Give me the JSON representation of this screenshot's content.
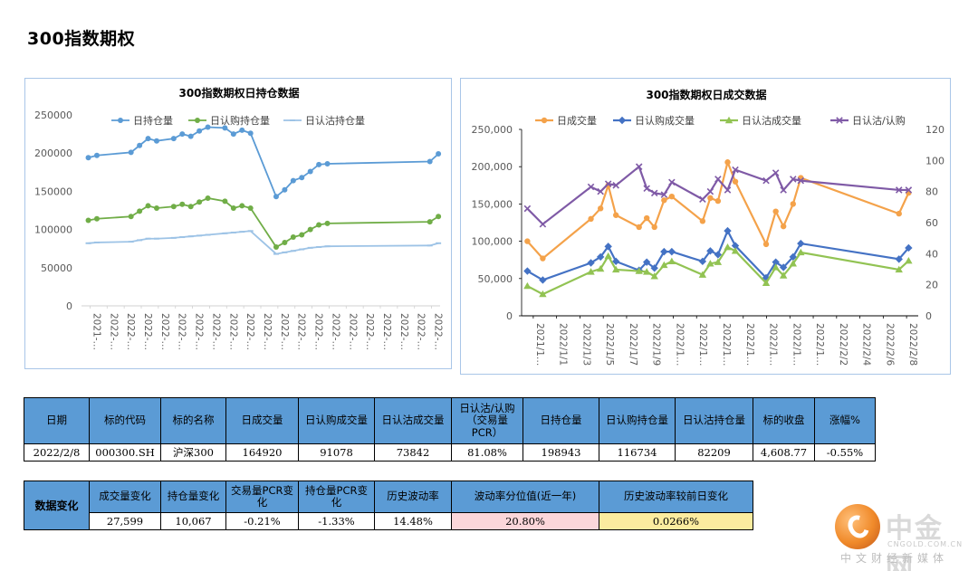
{
  "page": {
    "title": "300指数期权"
  },
  "chart_data": [
    {
      "type": "line",
      "title": "300指数期权日持仓数据",
      "ylim": [
        0,
        250000
      ],
      "yticks": [
        "0",
        "50000",
        "100000",
        "150000",
        "200000",
        "250000"
      ],
      "x_tick_labels": [
        "2021-…",
        "2022-…",
        "2022-…",
        "2022-…",
        "2022-…",
        "2022-…",
        "2022-…",
        "2022-…",
        "2022-…",
        "2022-…",
        "2022-…",
        "2022-…",
        "2022-…",
        "2022-…",
        "2022-…",
        "2022-…",
        "2022-…",
        "2022-…",
        "2022-…",
        "2022-…",
        "2022-…"
      ],
      "x_range": [
        -0.4,
        20.6
      ],
      "legend_position": "top",
      "series": [
        {
          "name": "日持仓量",
          "color": "#5b9bd5",
          "marker": "circle",
          "x": [
            0,
            0.5,
            2.5,
            3,
            3.5,
            4,
            5,
            5.5,
            6,
            6.5,
            7,
            8,
            8.5,
            9,
            9.5,
            11,
            11.5,
            12,
            12.5,
            13,
            13.5,
            14,
            20,
            20.5
          ],
          "values": [
            194000,
            197000,
            201000,
            210000,
            219000,
            216000,
            219000,
            225000,
            222000,
            229000,
            234000,
            233000,
            225000,
            230000,
            226000,
            143000,
            152000,
            164000,
            168000,
            176000,
            185000,
            186000,
            189000,
            199000
          ]
        },
        {
          "name": "日认购持仓量",
          "color": "#70ad47",
          "marker": "circle",
          "x": [
            0,
            0.5,
            2.5,
            3,
            3.5,
            4,
            5,
            5.5,
            6,
            6.5,
            7,
            8,
            8.5,
            9,
            9.5,
            11,
            11.5,
            12,
            12.5,
            13,
            13.5,
            14,
            20,
            20.5
          ],
          "values": [
            112000,
            114000,
            117000,
            124000,
            131000,
            128000,
            130000,
            133000,
            130000,
            136000,
            141000,
            137000,
            128000,
            131000,
            128000,
            77000,
            83000,
            90000,
            93000,
            100000,
            106000,
            108000,
            110000,
            117000
          ]
        },
        {
          "name": "日认沽持仓量",
          "color": "#9dc3e6",
          "marker": "dash",
          "x": [
            0,
            0.5,
            2.5,
            3,
            3.5,
            4,
            5,
            5.5,
            6,
            6.5,
            7,
            8,
            8.5,
            9,
            9.5,
            11,
            11.5,
            12,
            12.5,
            13,
            13.5,
            14,
            20,
            20.5
          ],
          "values": [
            82000,
            83000,
            84000,
            86000,
            88000,
            88000,
            89000,
            90000,
            91000,
            92000,
            93000,
            95000,
            96000,
            97000,
            98000,
            68000,
            70000,
            72000,
            74000,
            76000,
            77000,
            78000,
            79000,
            82000
          ]
        }
      ]
    },
    {
      "type": "line",
      "title": "300指数期权日成交数据",
      "ylim": [
        0,
        250000
      ],
      "yticks": [
        "0",
        "50,000",
        "100,000",
        "150,000",
        "200,000",
        "250,000"
      ],
      "y2lim": [
        0,
        120
      ],
      "y2ticks": [
        "0",
        "20",
        "40",
        "60",
        "80",
        "100",
        "120"
      ],
      "x_tick_labels": [
        "2021/1…",
        "2022/1/1",
        "2022/1/3",
        "2022/1/5",
        "2022/1/7",
        "2022/1/9",
        "2022/1…",
        "2022/1…",
        "2022/1…",
        "2022/1…",
        "2022/1…",
        "2022/1…",
        "2022/1…",
        "2022/2/2",
        "2022/2/4",
        "2022/2/6",
        "2022/2/8"
      ],
      "x_range": [
        -0.3,
        20.3
      ],
      "legend_position": "top",
      "series": [
        {
          "name": "日成交量",
          "color": "#f4a24a",
          "marker": "circle",
          "axis": "left",
          "x": [
            0,
            0.8,
            3.3,
            3.8,
            4.2,
            4.6,
            5.8,
            6.2,
            6.6,
            7.1,
            7.5,
            9.1,
            9.5,
            9.9,
            10.4,
            10.8,
            12.4,
            12.9,
            13.3,
            13.8,
            14.2,
            19.3,
            19.8
          ],
          "values": [
            100000,
            77000,
            130000,
            144000,
            175000,
            135000,
            119000,
            131000,
            119000,
            155000,
            160000,
            127000,
            158000,
            154000,
            206000,
            180000,
            96000,
            140000,
            120000,
            150000,
            185000,
            137000,
            164920
          ]
        },
        {
          "name": "日认购成交量",
          "color": "#4472c4",
          "marker": "diamond",
          "axis": "left",
          "x": [
            0,
            0.8,
            3.3,
            3.8,
            4.2,
            4.6,
            5.8,
            6.2,
            6.6,
            7.1,
            7.5,
            9.1,
            9.5,
            9.9,
            10.4,
            10.8,
            12.4,
            12.9,
            13.3,
            13.8,
            14.2,
            19.3,
            19.8
          ],
          "values": [
            60000,
            48000,
            71000,
            79000,
            93000,
            73000,
            61000,
            72000,
            64000,
            86000,
            86000,
            73000,
            87000,
            82000,
            114000,
            94000,
            51000,
            72000,
            65000,
            79000,
            97000,
            76000,
            91078
          ]
        },
        {
          "name": "日认沽成交量",
          "color": "#92c353",
          "marker": "triangle",
          "axis": "left",
          "x": [
            0,
            0.8,
            3.3,
            3.8,
            4.2,
            4.6,
            5.8,
            6.2,
            6.6,
            7.1,
            7.5,
            9.1,
            9.5,
            9.9,
            10.4,
            10.8,
            12.4,
            12.9,
            13.3,
            13.8,
            14.2,
            19.3,
            19.8
          ],
          "values": [
            40000,
            29000,
            59000,
            63000,
            80000,
            62000,
            60000,
            59000,
            53000,
            68000,
            73000,
            55000,
            70000,
            72000,
            92000,
            87000,
            44000,
            65000,
            54000,
            70000,
            85000,
            62000,
            73842
          ]
        },
        {
          "name": "日认沽/认购",
          "color": "#7f5aa6",
          "marker": "x",
          "axis": "right",
          "x": [
            0,
            0.8,
            3.3,
            3.8,
            4.2,
            4.6,
            5.8,
            6.2,
            6.6,
            7.1,
            7.5,
            9.1,
            9.5,
            9.9,
            10.4,
            10.8,
            12.4,
            12.9,
            13.3,
            13.8,
            14.2,
            19.3,
            19.8
          ],
          "values": [
            69,
            59,
            83,
            80,
            85,
            84,
            96,
            82,
            79,
            78,
            86,
            75,
            80,
            88,
            81,
            94,
            87,
            92,
            81,
            88,
            87,
            81,
            81
          ]
        }
      ]
    }
  ],
  "table1": {
    "headers": [
      "日期",
      "标的代码",
      "标的名称",
      "日成交量",
      "日认购成交量",
      "日认沽成交量",
      "日认沽/认购（交易量PCR）",
      "日持仓量",
      "日认购持仓量",
      "日认沽持仓量",
      "标的收盘",
      "涨幅%"
    ],
    "row": [
      "2022/2/8",
      "000300.SH",
      "沪深300",
      "164920",
      "91078",
      "73842",
      "81.08%",
      "198943",
      "116734",
      "82209",
      "4,608.77",
      "-0.55%"
    ]
  },
  "table2": {
    "side_label": "数据变化",
    "headers": [
      "成交量变化",
      "持仓量变化",
      "交易量PCR变化",
      "持仓量PCR变化",
      "历史波动率",
      "波动率分位值(近一年)",
      "历史波动率较前日变化"
    ],
    "row": [
      "27,599",
      "10,067",
      "-0.21%",
      "-1.33%",
      "14.48%",
      "20.80%",
      "0.0266%"
    ]
  },
  "logo": {
    "brand": "中金网",
    "domain": "CNGOLD.COM.CN",
    "slogan": "中文财经新媒体",
    "colors": {
      "disc": "#f08a2a",
      "text": "#d9d9d9"
    }
  }
}
